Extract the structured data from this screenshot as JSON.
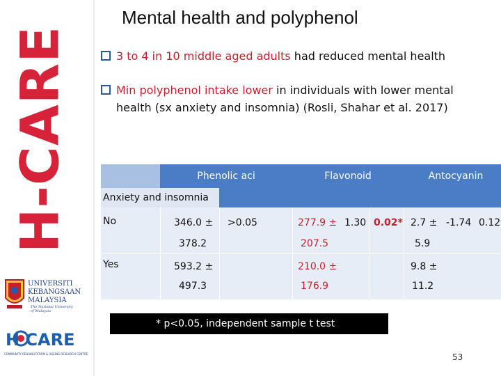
{
  "sidebar": {
    "vertical_title": "H-CARE",
    "university": {
      "line1": "UNIVERSITI",
      "line2": "KEBANGSAAN",
      "line3": "MALAYSIA",
      "tagline1": "The National University",
      "tagline2": "of Malaysia"
    },
    "hcare_logo": {
      "text": "H CARE",
      "subtitle": "COMMUNITY REHABILITATION & AGEING RESEARCH CENTRE"
    }
  },
  "slide": {
    "title": "Mental health and polyphenol",
    "bullets": [
      {
        "highlight": "3 to 4 in 10 middle aged adults",
        "rest": " had reduced mental health"
      },
      {
        "highlight": "Min polyphenol intake lower",
        "rest": " in individuals with lower mental",
        "line2": "health (sx anxiety and insomnia) (Rosli, Shahar et al. 2017)"
      }
    ],
    "table": {
      "headers": [
        "Phenolic aci",
        "Flavonoid",
        "Antocyanin"
      ],
      "section": "Anxiety and insomnia",
      "rows": [
        {
          "label": "No",
          "phenolic": "346.0 ±",
          "phenolic2": "378.2",
          "p1": ">0.05",
          "flav": "277.9 ±",
          "flav2": "207.5",
          "t2": "1.30",
          "p2": "0.02*",
          "anto": "2.7 ±",
          "anto2": "5.9",
          "t3": "-1.74",
          "p3": "0.12"
        },
        {
          "label": "Yes",
          "phenolic": "593.2 ±",
          "phenolic2": "497.3",
          "flav": "210.0 ±",
          "flav2": "176.9",
          "anto": "9.8 ±",
          "anto2": "11.2"
        }
      ]
    },
    "footnote": "* p<0.05, independent sample t test",
    "page_number": "53"
  },
  "colors": {
    "accent_red": "#c5202b",
    "header_blue": "#4a7dc6",
    "row_light": "#e7edf6"
  }
}
